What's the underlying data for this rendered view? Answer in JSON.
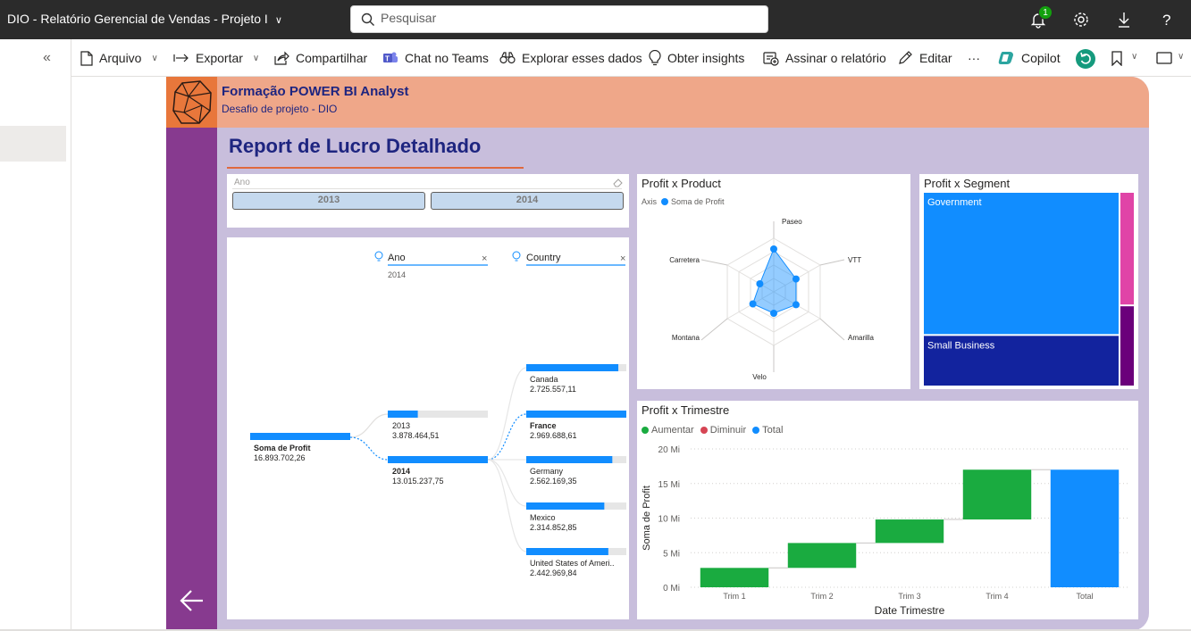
{
  "app": {
    "title": "DIO - Relatório Gerencial de Vendas - Projeto I",
    "search_placeholder": "Pesquisar",
    "notification_count": "1"
  },
  "toolbar": {
    "file": "Arquivo",
    "export": "Exportar",
    "share": "Compartilhar",
    "teams": "Chat no Teams",
    "explore": "Explorar esses dados",
    "insights": "Obter insights",
    "subscribe": "Assinar o relatório",
    "edit": "Editar",
    "more": "···",
    "copilot": "Copilot"
  },
  "header": {
    "title": "Formação POWER BI Analyst",
    "subtitle": "Desafio de projeto - DIO"
  },
  "page_title": "Report de Lucro Detalhado",
  "colors": {
    "header": "#efa789",
    "sideband": "#873a8f",
    "background": "#c8bedc",
    "accent": "#118dff",
    "increase": "#1aab40",
    "decrease": "#d64554",
    "title": "#1e2580"
  },
  "slicer": {
    "label": "Ano",
    "options": [
      "2013",
      "2014"
    ]
  },
  "decomp": {
    "col1": {
      "label": "Ano",
      "sub": "2014"
    },
    "col2": {
      "label": "Country"
    },
    "root": {
      "label": "Soma de Profit",
      "value": "16.893.702,26"
    },
    "years": [
      {
        "label": "2013",
        "value": "3.878.464,51",
        "fraction": 0.3,
        "selected": false
      },
      {
        "label": "2014",
        "value": "13.015.237,75",
        "fraction": 1.0,
        "selected": true
      }
    ],
    "countries": [
      {
        "label": "Canada",
        "value": "2.725.557,11",
        "fraction": 0.92,
        "bold": false
      },
      {
        "label": "France",
        "value": "2.969.688,61",
        "fraction": 1.0,
        "bold": true
      },
      {
        "label": "Germany",
        "value": "2.562.169,35",
        "fraction": 0.86,
        "bold": false
      },
      {
        "label": "Mexico",
        "value": "2.314.852,85",
        "fraction": 0.78,
        "bold": false
      },
      {
        "label": "United States of Ameri..",
        "value": "2.442.969,84",
        "fraction": 0.82,
        "bold": false
      }
    ]
  },
  "chart_data": [
    {
      "type": "radar",
      "title": "Profit x Product",
      "legend_axis": "Axis",
      "legend_series": "Soma de Profit",
      "categories": [
        "Paseo",
        "VTT",
        "Amarilla",
        "Velo",
        "Montana",
        "Carretera"
      ],
      "values": [
        0.8,
        0.48,
        0.48,
        0.4,
        0.45,
        0.3
      ]
    },
    {
      "type": "treemap",
      "title": "Profit x Segment",
      "items": [
        {
          "name": "Government",
          "value": 11.4,
          "color": "#118dff"
        },
        {
          "name": "Small Business",
          "value": 4.1,
          "color": "#12239e"
        },
        {
          "name": "",
          "value": 0.7,
          "color": "#e044a7"
        },
        {
          "name": "",
          "value": 0.5,
          "color": "#6b007b"
        }
      ]
    },
    {
      "type": "waterfall",
      "title": "Profit x Trimestre",
      "legend": [
        "Aumentar",
        "Diminuir",
        "Total"
      ],
      "categories": [
        "Trim 1",
        "Trim 2",
        "Trim 3",
        "Trim 4",
        "Total"
      ],
      "deltas": [
        2.8,
        3.6,
        3.4,
        7.2
      ],
      "total": 17.0,
      "ylim": [
        0,
        20
      ],
      "yticks": [
        "0 Mi",
        "5 Mi",
        "10 Mi",
        "15 Mi",
        "20 Mi"
      ],
      "ylabel": "Soma de Profit",
      "xlabel": "Date Trimestre"
    }
  ]
}
